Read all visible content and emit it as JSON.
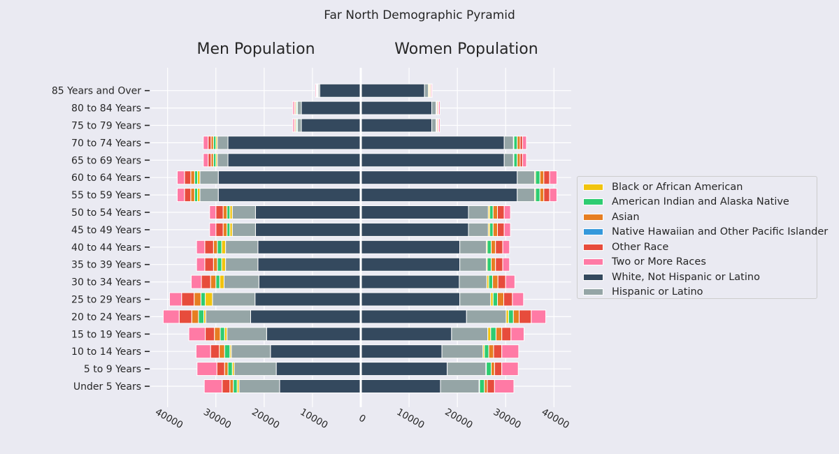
{
  "chart_data": {
    "type": "bar",
    "orientation": "horizontal",
    "stacked": true,
    "title": "Far North Demographic Pyramid",
    "left_title": "Men Population",
    "right_title": "Women Population",
    "xlabel": "",
    "ylabel": "",
    "xlim": [
      -43500,
      43500
    ],
    "x_ticks": [
      {
        "value": -40000,
        "label": "40000"
      },
      {
        "value": -30000,
        "label": "30000"
      },
      {
        "value": -20000,
        "label": "20000"
      },
      {
        "value": -10000,
        "label": "10000"
      },
      {
        "value": 0,
        "label": "0"
      },
      {
        "value": 10000,
        "label": "10000"
      },
      {
        "value": 20000,
        "label": "20000"
      },
      {
        "value": 30000,
        "label": "30000"
      },
      {
        "value": 40000,
        "label": "40000"
      }
    ],
    "grid": true,
    "legend_position": "center-right, outside plot",
    "categories": [
      "Under 5 Years",
      "5 to 9 Years",
      "10 to 14 Years",
      "15 to 19 Years",
      "20 to 24 Years",
      "25 to 29 Years",
      "30 to 34 Years",
      "35 to 39 Years",
      "40 to 44 Years",
      "45 to 49 Years",
      "50 to 54 Years",
      "55 to 59 Years",
      "60 to 64 Years",
      "65 to 69 Years",
      "70 to 74 Years",
      "75 to 79 Years",
      "80 to 84 Years",
      "85 Years and Over"
    ],
    "stack_order": [
      "White, Not Hispanic or Latino",
      "Hispanic or Latino",
      "Black or African American",
      "American Indian and Alaska Native",
      "Asian",
      "Native Hawaiian and Other Pacific Islander",
      "Other Race",
      "Two or More Races"
    ],
    "legend_order": [
      "Black or African American",
      "American Indian and Alaska Native",
      "Asian",
      "Native Hawaiian and Other Pacific Islander",
      "Other Race",
      "Two or More Races",
      "White, Not Hispanic or Latino",
      "Hispanic or Latino"
    ],
    "colors": {
      "Black or African American": "#f1c40f",
      "American Indian and Alaska Native": "#2ecc71",
      "Asian": "#e67e22",
      "Native Hawaiian and Other Pacific Islander": "#3498db",
      "Other Race": "#e74c3c",
      "Two or More Races": "#ff7aa5",
      "White, Not Hispanic or Latino": "#34495e",
      "Hispanic or Latino": "#95a5a6"
    },
    "men": {
      "White, Not Hispanic or Latino": [
        16800,
        17500,
        18700,
        19500,
        22800,
        21900,
        21100,
        21300,
        21300,
        21800,
        21800,
        29500,
        29500,
        27500,
        27500,
        12300,
        12300,
        8500
      ],
      "Hispanic or Latino": [
        8400,
        8700,
        8100,
        8200,
        9300,
        8800,
        7200,
        6700,
        6700,
        4800,
        4800,
        3800,
        3800,
        2200,
        2200,
        800,
        800,
        300
      ],
      "Black or African American": [
        400,
        400,
        300,
        500,
        400,
        1500,
        900,
        800,
        800,
        500,
        500,
        500,
        500,
        300,
        300,
        100,
        100,
        100
      ],
      "American Indian and Alaska Native": [
        800,
        900,
        1100,
        900,
        1100,
        900,
        800,
        900,
        900,
        600,
        600,
        600,
        600,
        500,
        500,
        200,
        200,
        100
      ],
      "Asian": [
        700,
        700,
        1100,
        1200,
        1400,
        1400,
        1100,
        800,
        800,
        800,
        800,
        800,
        800,
        500,
        500,
        200,
        200,
        100
      ],
      "Native Hawaiian and Other Pacific Islander": [
        0,
        0,
        0,
        0,
        0,
        0,
        0,
        0,
        0,
        0,
        0,
        0,
        0,
        0,
        0,
        0,
        0,
        0
      ],
      "Other Race": [
        1600,
        1600,
        1800,
        1900,
        2600,
        2600,
        1900,
        1800,
        1800,
        1500,
        1500,
        1300,
        1300,
        600,
        600,
        200,
        200,
        100
      ],
      "Two or More Races": [
        3700,
        4100,
        3000,
        3400,
        3300,
        2500,
        2100,
        1700,
        1700,
        1300,
        1300,
        1500,
        1500,
        1000,
        1000,
        300,
        300,
        200
      ]
    },
    "women": {
      "White, Not Hispanic or Latino": [
        16500,
        17900,
        16800,
        18800,
        21900,
        20500,
        20400,
        20500,
        20500,
        22300,
        22300,
        32400,
        32400,
        29700,
        29700,
        14700,
        14700,
        13200
      ],
      "Hispanic or Latino": [
        8000,
        8000,
        8500,
        7500,
        8200,
        6400,
        5700,
        5500,
        5500,
        4100,
        4100,
        3600,
        3600,
        1900,
        1900,
        900,
        900,
        800
      ],
      "Black or African American": [
        100,
        100,
        300,
        600,
        500,
        500,
        400,
        200,
        200,
        300,
        300,
        200,
        200,
        100,
        100,
        100,
        100,
        200
      ],
      "American Indian and Alaska Native": [
        1000,
        1000,
        900,
        1100,
        1000,
        900,
        800,
        800,
        800,
        700,
        700,
        900,
        900,
        700,
        700,
        100,
        100,
        100
      ],
      "Asian": [
        600,
        700,
        1000,
        1200,
        1200,
        1300,
        1100,
        900,
        900,
        900,
        900,
        800,
        800,
        600,
        600,
        200,
        200,
        200
      ],
      "Native Hawaiian and Other Pacific Islander": [
        0,
        0,
        0,
        0,
        0,
        0,
        0,
        0,
        0,
        0,
        0,
        0,
        0,
        0,
        0,
        0,
        0,
        0
      ],
      "Other Race": [
        1500,
        1500,
        1700,
        1900,
        2500,
        1800,
        1600,
        1500,
        1500,
        1400,
        1400,
        1200,
        1200,
        500,
        500,
        100,
        100,
        100
      ],
      "Two or More Races": [
        4000,
        3400,
        3500,
        2700,
        3000,
        2300,
        1900,
        1400,
        1400,
        1300,
        1300,
        1500,
        1500,
        800,
        800,
        300,
        300,
        200
      ]
    }
  }
}
